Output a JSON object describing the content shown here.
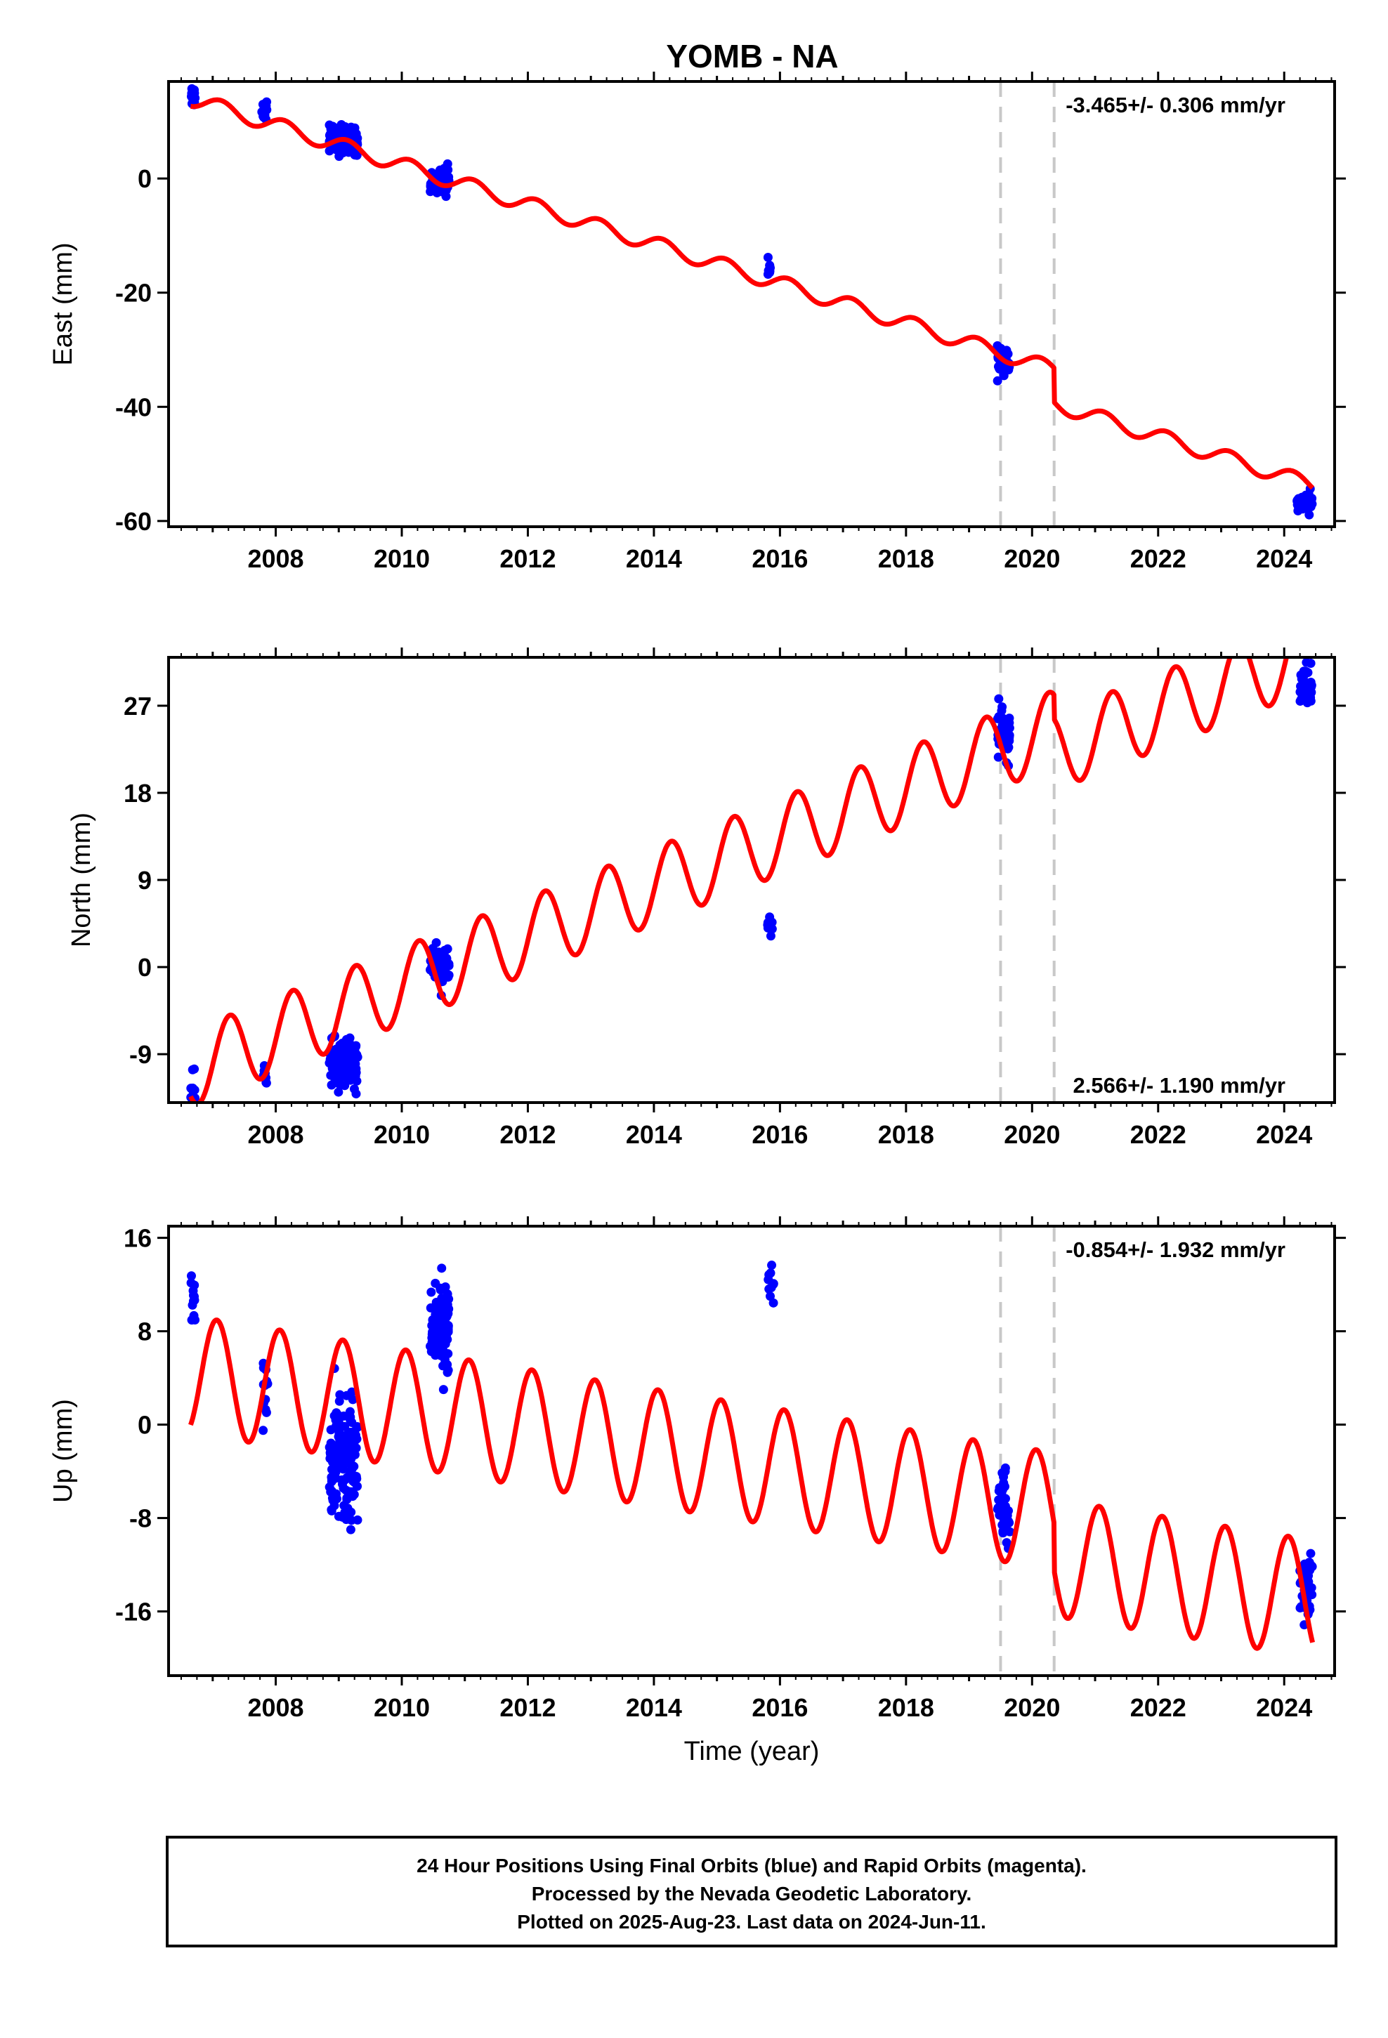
{
  "title": "YOMB - NA",
  "footer": {
    "lines": [
      "24 Hour Positions Using Final Orbits (blue) and Rapid Orbits (magenta).",
      "Processed by the Nevada Geodetic Laboratory.",
      "Plotted on 2025-Aug-23. Last data on 2024-Jun-11."
    ]
  },
  "colors": {
    "model": "#ff0000",
    "final_orbits": "#0000ff",
    "event_line": "#c8c8c8",
    "frame": "#000000"
  },
  "chart_data": [
    {
      "type": "scatter",
      "ylabel": "East (mm)",
      "xlabel": "",
      "xlim": [
        2006.3,
        2024.8
      ],
      "ylim": [
        -61,
        17
      ],
      "xticks": [
        2008,
        2010,
        2012,
        2014,
        2016,
        2018,
        2020,
        2022,
        2024
      ],
      "yticks": [
        -60,
        -40,
        -20,
        0
      ],
      "rate_label": "-3.465+/- 0.306 mm/yr",
      "rate_label_position": "top-right",
      "event_lines": [
        2019.5,
        2020.35
      ],
      "grid": false,
      "model": {
        "rate": -3.465,
        "offset": 14.0,
        "amp_sin": 1.0,
        "amp_cos": 0.9,
        "steps": [
          {
            "t": 2020.35,
            "dy": -6.0
          }
        ]
      },
      "observations": [
        {
          "t0": 2006.65,
          "t1": 2006.72,
          "center": 14.5,
          "spread": 1.8,
          "n": 12
        },
        {
          "t0": 2007.78,
          "t1": 2007.86,
          "center": 12.0,
          "spread": 2.0,
          "n": 12
        },
        {
          "t0": 2008.85,
          "t1": 2009.3,
          "center": 6.8,
          "spread": 2.2,
          "n": 130
        },
        {
          "t0": 2010.45,
          "t1": 2010.75,
          "center": -0.6,
          "spread": 2.0,
          "n": 70
        },
        {
          "t0": 2015.8,
          "t1": 2015.85,
          "center": -16.0,
          "spread": 1.5,
          "n": 8
        },
        {
          "t0": 2019.45,
          "t1": 2019.65,
          "center": -32.0,
          "spread": 1.8,
          "n": 45
        },
        {
          "t0": 2024.2,
          "t1": 2024.45,
          "center": -56.8,
          "spread": 1.6,
          "n": 40
        }
      ]
    },
    {
      "type": "scatter",
      "ylabel": "North (mm)",
      "xlabel": "",
      "xlim": [
        2006.3,
        2024.8
      ],
      "ylim": [
        -14,
        32
      ],
      "xticks": [
        2008,
        2010,
        2012,
        2014,
        2016,
        2018,
        2020,
        2022,
        2024
      ],
      "yticks": [
        -9,
        0,
        9,
        18,
        27
      ],
      "rate_label": "2.566+/- 1.190 mm/yr",
      "rate_label_position": "bottom-right",
      "event_lines": [
        2019.5,
        2020.35
      ],
      "grid": false,
      "model": {
        "rate": 2.566,
        "offset": -10.5,
        "amp_sin": 3.9,
        "amp_cos": -0.5,
        "steps": [
          {
            "t": 2020.35,
            "dy": -2.5
          }
        ]
      },
      "observations": [
        {
          "t0": 2006.65,
          "t1": 2006.72,
          "center": -12.0,
          "spread": 2.2,
          "n": 10
        },
        {
          "t0": 2007.8,
          "t1": 2007.88,
          "center": -11.0,
          "spread": 1.6,
          "n": 8
        },
        {
          "t0": 2008.85,
          "t1": 2009.3,
          "center": -10.0,
          "spread": 2.2,
          "n": 130
        },
        {
          "t0": 2010.45,
          "t1": 2010.75,
          "center": 0.2,
          "spread": 2.0,
          "n": 70
        },
        {
          "t0": 2015.8,
          "t1": 2015.88,
          "center": 4.2,
          "spread": 1.2,
          "n": 10
        },
        {
          "t0": 2019.45,
          "t1": 2019.65,
          "center": 24.0,
          "spread": 2.2,
          "n": 45
        },
        {
          "t0": 2024.25,
          "t1": 2024.45,
          "center": 29.0,
          "spread": 1.8,
          "n": 40
        }
      ]
    },
    {
      "type": "scatter",
      "ylabel": "Up (mm)",
      "xlabel": "Time (year)",
      "xlim": [
        2006.3,
        2024.8
      ],
      "ylim": [
        -21.5,
        17
      ],
      "xticks": [
        2008,
        2010,
        2012,
        2014,
        2016,
        2018,
        2020,
        2022,
        2024
      ],
      "yticks": [
        -16,
        -8,
        0,
        8,
        16
      ],
      "rate_label": "-0.854+/- 1.932 mm/yr",
      "rate_label_position": "top-right",
      "event_lines": [
        2019.5,
        2020.35
      ],
      "grid": false,
      "model": {
        "rate": -0.854,
        "offset": 4.3,
        "amp_sin": 2.0,
        "amp_cos": 4.6,
        "steps": [
          {
            "t": 2020.35,
            "dy": -4.0
          }
        ]
      },
      "observations": [
        {
          "t0": 2006.65,
          "t1": 2006.72,
          "center": 11.0,
          "spread": 2.5,
          "n": 12
        },
        {
          "t0": 2007.8,
          "t1": 2007.88,
          "center": 2.5,
          "spread": 3.0,
          "n": 14
        },
        {
          "t0": 2008.85,
          "t1": 2009.3,
          "center": -3.0,
          "spread": 4.5,
          "n": 150
        },
        {
          "t0": 2010.45,
          "t1": 2010.75,
          "center": 8.5,
          "spread": 3.5,
          "n": 110
        },
        {
          "t0": 2015.8,
          "t1": 2015.9,
          "center": 12.0,
          "spread": 3.0,
          "n": 10
        },
        {
          "t0": 2019.45,
          "t1": 2019.65,
          "center": -7.0,
          "spread": 2.5,
          "n": 45
        },
        {
          "t0": 2024.25,
          "t1": 2024.45,
          "center": -14.0,
          "spread": 3.0,
          "n": 45
        }
      ]
    }
  ]
}
